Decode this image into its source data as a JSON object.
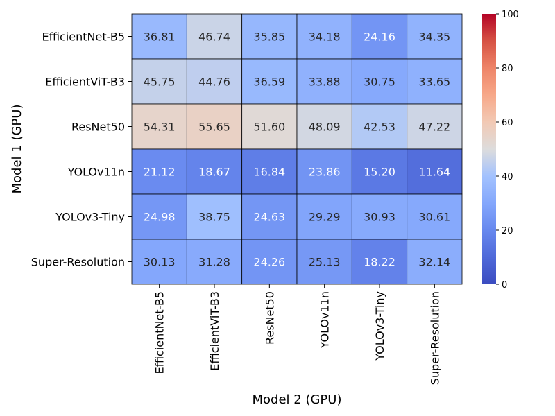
{
  "chart_data": {
    "type": "heatmap",
    "xlabel": "Model 2 (GPU)",
    "ylabel": "Model 1 (GPU)",
    "x_categories": [
      "EfficientNet-B5",
      "EfficientViT-B3",
      "ResNet50",
      "YOLOv11n",
      "YOLOv3-Tiny",
      "Super-Resolution"
    ],
    "y_categories": [
      "EfficientNet-B5",
      "EfficientViT-B3",
      "ResNet50",
      "YOLOv11n",
      "YOLOv3-Tiny",
      "Super-Resolution"
    ],
    "values": [
      [
        "36.81",
        "46.74",
        "35.85",
        "34.18",
        "24.16",
        "34.35"
      ],
      [
        "45.75",
        "44.76",
        "36.59",
        "33.88",
        "30.75",
        "33.65"
      ],
      [
        "54.31",
        "55.65",
        "51.60",
        "48.09",
        "42.53",
        "47.22"
      ],
      [
        "21.12",
        "18.67",
        "16.84",
        "23.86",
        "15.20",
        "11.64"
      ],
      [
        "24.98",
        "38.75",
        "24.63",
        "29.29",
        "30.93",
        "30.61"
      ],
      [
        "30.13",
        "31.28",
        "24.26",
        "25.13",
        "18.22",
        "32.14"
      ]
    ],
    "colorbar": {
      "colormap": "coolwarm",
      "range": [
        0,
        100
      ],
      "ticks": [
        "0",
        "20",
        "40",
        "60",
        "80",
        "100"
      ]
    },
    "cell_borders": "black"
  }
}
